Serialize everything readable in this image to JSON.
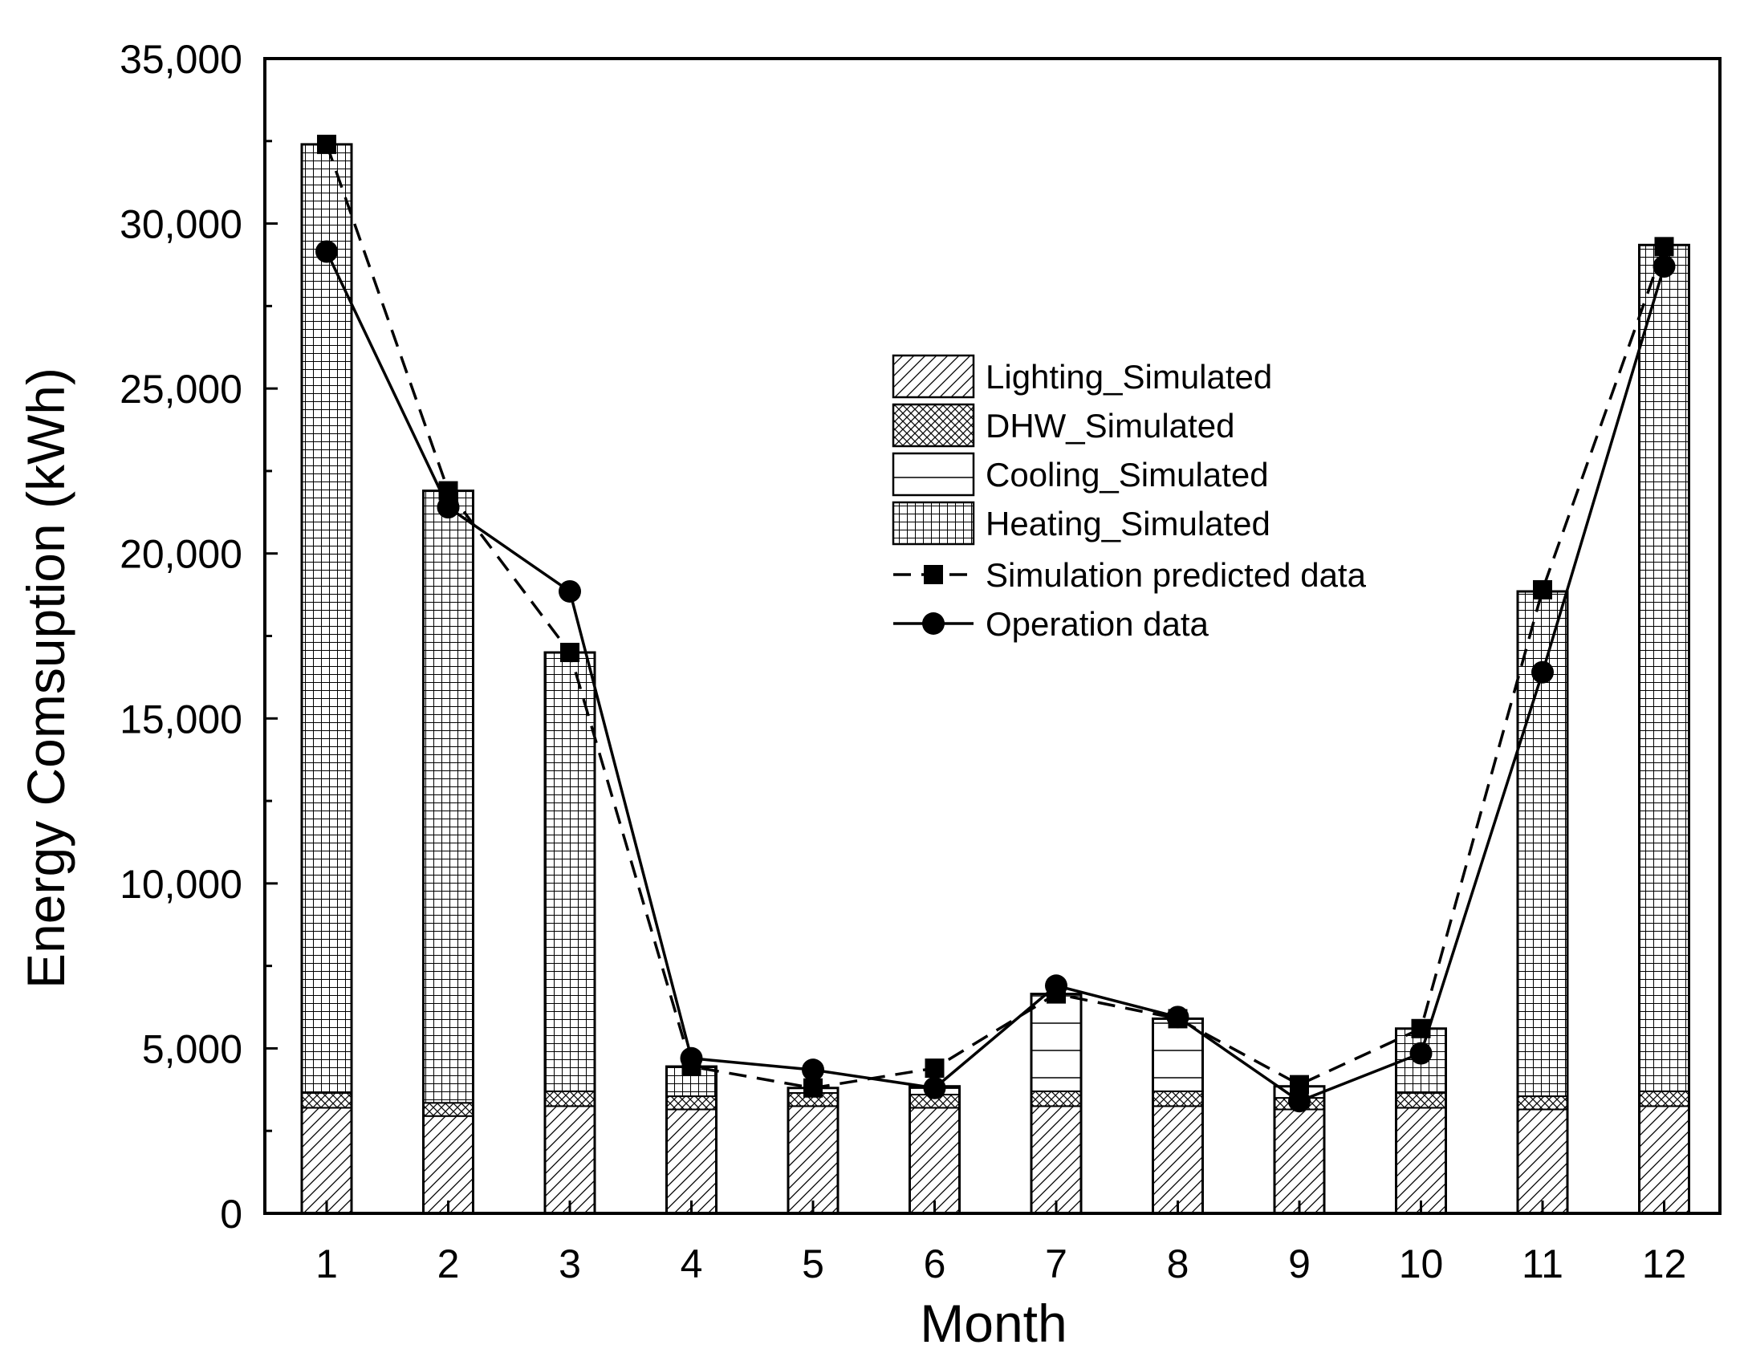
{
  "chart_data": {
    "type": "bar",
    "subtype": "stacked bar with line overlays",
    "title": "",
    "xlabel": "Month",
    "ylabel": "Energy Comsuption (kWh)",
    "ylim": [
      0,
      35000
    ],
    "yticks": [
      0,
      5000,
      10000,
      15000,
      20000,
      25000,
      30000,
      35000
    ],
    "ytick_labels": [
      "0",
      "5,000",
      "10,000",
      "15,000",
      "20,000",
      "25,000",
      "30,000",
      "35,000"
    ],
    "categories": [
      "1",
      "2",
      "3",
      "4",
      "5",
      "6",
      "7",
      "8",
      "9",
      "10",
      "11",
      "12"
    ],
    "grid": false,
    "legend_position": "center-right",
    "series": [
      {
        "name": "Lighting_Simulated",
        "kind": "bar",
        "pattern": "diagonal-hatch",
        "values": [
          3200,
          2950,
          3250,
          3150,
          3250,
          3200,
          3250,
          3250,
          3150,
          3200,
          3150,
          3250
        ]
      },
      {
        "name": "DHW_Simulated",
        "kind": "bar",
        "pattern": "cross-hatch",
        "values": [
          450,
          400,
          450,
          400,
          400,
          400,
          450,
          450,
          350,
          450,
          400,
          450
        ]
      },
      {
        "name": "Cooling_Simulated",
        "kind": "bar",
        "pattern": "horizontal-lines",
        "values": [
          0,
          0,
          0,
          0,
          150,
          200,
          2950,
          2200,
          350,
          0,
          0,
          0
        ]
      },
      {
        "name": "Heating_Simulated",
        "kind": "bar",
        "pattern": "grid",
        "values": [
          28750,
          18550,
          13300,
          900,
          0,
          50,
          0,
          0,
          0,
          1950,
          15300,
          25650
        ]
      },
      {
        "name": "Simulation predicted data",
        "kind": "line",
        "line_style": "dashed",
        "marker": "square",
        "values": [
          32400,
          21900,
          17000,
          4450,
          3800,
          4400,
          6650,
          5900,
          3900,
          5600,
          18900,
          29300
        ]
      },
      {
        "name": "Operation data",
        "kind": "line",
        "line_style": "solid",
        "marker": "circle",
        "values": [
          29150,
          21400,
          18850,
          4700,
          4350,
          3800,
          6900,
          5950,
          3400,
          4850,
          16400,
          28700
        ]
      }
    ]
  }
}
